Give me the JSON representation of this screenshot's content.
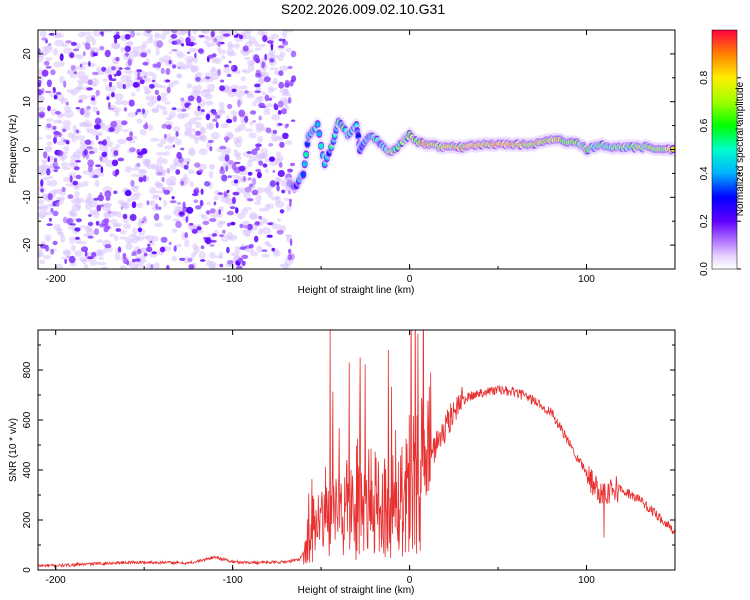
{
  "title": "S202.2026.009.02.10.G31",
  "spectrogram": {
    "type": "heatmap",
    "xlabel": "Height of straight line (km)",
    "ylabel": "Frequency (Hz)",
    "xlim": [
      -210,
      150
    ],
    "ylim": [
      -25,
      25
    ],
    "xticks": [
      -200,
      -100,
      0,
      100
    ],
    "yticks": [
      -20,
      -10,
      0,
      10,
      20
    ],
    "noise_region_x": [
      -210,
      -68
    ],
    "ridge": [
      {
        "x": -68,
        "f": -7,
        "a": 0.55
      },
      {
        "x": -65,
        "f": -8,
        "a": 0.45
      },
      {
        "x": -60,
        "f": -5,
        "a": 0.5
      },
      {
        "x": -57,
        "f": 3,
        "a": 0.55
      },
      {
        "x": -52,
        "f": 5,
        "a": 0.5
      },
      {
        "x": -48,
        "f": -3,
        "a": 0.5
      },
      {
        "x": -43,
        "f": 2,
        "a": 0.6
      },
      {
        "x": -40,
        "f": 6,
        "a": 0.6
      },
      {
        "x": -35,
        "f": 3,
        "a": 0.65
      },
      {
        "x": -30,
        "f": 5,
        "a": 0.55
      },
      {
        "x": -28,
        "f": 0,
        "a": 0.45
      },
      {
        "x": -22,
        "f": 3,
        "a": 0.5
      },
      {
        "x": -17,
        "f": 1.5,
        "a": 0.55
      },
      {
        "x": -12,
        "f": -0.5,
        "a": 0.7
      },
      {
        "x": -8,
        "f": 0,
        "a": 0.75
      },
      {
        "x": -3,
        "f": 2,
        "a": 0.7
      },
      {
        "x": 0,
        "f": 3,
        "a": 0.75
      },
      {
        "x": 5,
        "f": 1.5,
        "a": 0.8
      },
      {
        "x": 10,
        "f": 1,
        "a": 0.85
      },
      {
        "x": 20,
        "f": 0.5,
        "a": 0.9
      },
      {
        "x": 30,
        "f": 0.5,
        "a": 0.9
      },
      {
        "x": 40,
        "f": 1,
        "a": 0.9
      },
      {
        "x": 50,
        "f": 1,
        "a": 0.92
      },
      {
        "x": 60,
        "f": 1,
        "a": 0.95
      },
      {
        "x": 70,
        "f": 1.2,
        "a": 0.9
      },
      {
        "x": 78,
        "f": 2,
        "a": 0.85
      },
      {
        "x": 85,
        "f": 1.8,
        "a": 0.8
      },
      {
        "x": 92,
        "f": 1.5,
        "a": 0.8
      },
      {
        "x": 97,
        "f": 1,
        "a": 0.75
      },
      {
        "x": 100,
        "f": 0,
        "a": 0.7
      },
      {
        "x": 108,
        "f": 1,
        "a": 0.65
      },
      {
        "x": 115,
        "f": 0.5,
        "a": 0.7
      },
      {
        "x": 125,
        "f": 0.5,
        "a": 0.75
      },
      {
        "x": 135,
        "f": 0.5,
        "a": 0.7
      },
      {
        "x": 142,
        "f": 0,
        "a": 0.8
      },
      {
        "x": 150,
        "f": 0,
        "a": 0.8
      }
    ]
  },
  "colorbar": {
    "label": "Normalized spectral amplitude",
    "range": [
      0,
      1
    ],
    "ticks": [
      "0.0",
      "0.2",
      "0.4",
      "0.6",
      "0.8"
    ],
    "tick_values": [
      0,
      0.2,
      0.4,
      0.6,
      0.8
    ]
  },
  "chart_data": {
    "type": "line",
    "title": "",
    "xlabel": "Height of straight line (km)",
    "ylabel": "SNR (10 * v/v)",
    "xlim": [
      -210,
      150
    ],
    "ylim": [
      0,
      960
    ],
    "xticks": [
      -200,
      -100,
      0,
      100
    ],
    "yticks": [
      0,
      200,
      400,
      600,
      800
    ],
    "series": [
      {
        "name": "SNR",
        "color": "#e83030",
        "x": [
          -210,
          -200,
          -180,
          -160,
          -140,
          -125,
          -118,
          -110,
          -100,
          -90,
          -80,
          -70,
          -62,
          -55,
          -50,
          -45,
          -40,
          -35,
          -30,
          -25,
          -20,
          -15,
          -10,
          -5,
          0,
          5,
          10,
          15,
          20,
          25,
          30,
          40,
          50,
          60,
          70,
          80,
          90,
          100,
          105,
          110,
          115,
          120,
          130,
          140,
          150
        ],
        "values": [
          15,
          15,
          22,
          28,
          28,
          25,
          35,
          50,
          30,
          28,
          28,
          30,
          40,
          150,
          200,
          230,
          260,
          280,
          260,
          290,
          300,
          280,
          300,
          320,
          400,
          440,
          430,
          500,
          560,
          640,
          680,
          710,
          720,
          710,
          680,
          630,
          510,
          390,
          330,
          310,
          330,
          320,
          280,
          220,
          150
        ],
        "spikes": [
          {
            "x": -45,
            "y": 960
          },
          {
            "x": -34,
            "y": 830
          },
          {
            "x": -28,
            "y": 850
          },
          {
            "x": -12,
            "y": 880
          },
          {
            "x": -8,
            "y": 560
          },
          {
            "x": 12,
            "y": 790
          },
          {
            "x": 110,
            "y": 130
          }
        ]
      }
    ]
  }
}
